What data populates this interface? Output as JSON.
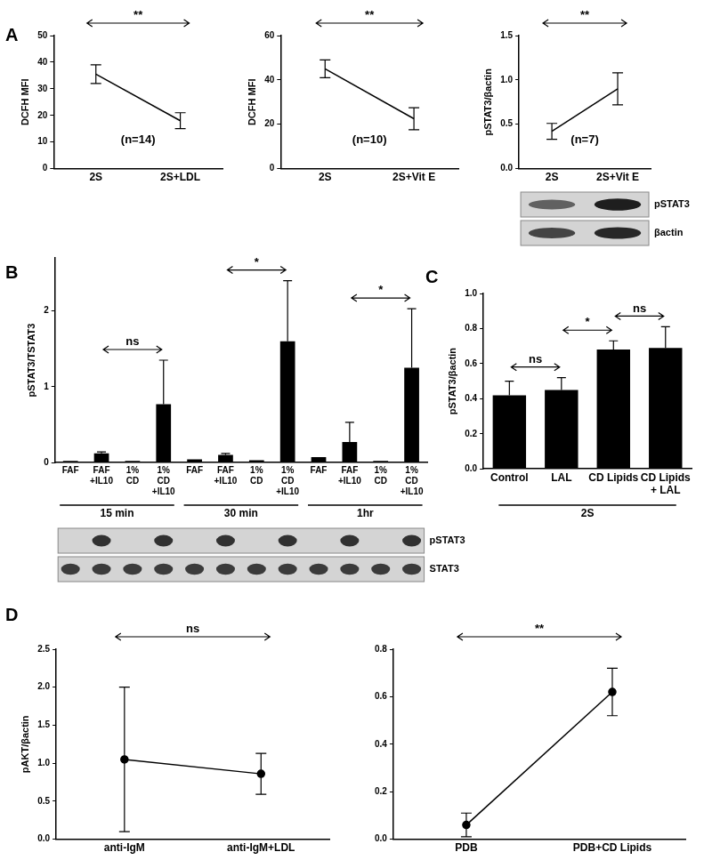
{
  "chart_data": [
    {
      "panel": "A",
      "type": "line",
      "categories": [
        "2S",
        "2S+LDL"
      ],
      "values": [
        35.5,
        18
      ],
      "errors": [
        3.5,
        3
      ],
      "color": "#000000",
      "marker": "none",
      "y_label": "DCFH MFI",
      "ylim": [
        0,
        50
      ],
      "yticks": [
        0,
        10,
        20,
        30,
        40,
        50
      ],
      "annotation": "(n=14)",
      "comparisons": [
        {
          "from": "2S",
          "to": "2S+LDL",
          "label": "**"
        }
      ]
    },
    {
      "type": "line",
      "categories": [
        "2S",
        "2S+Vit E"
      ],
      "values": [
        45,
        22.5
      ],
      "errors": [
        4,
        5
      ],
      "color": "#000000",
      "marker": "none",
      "y_label": "DCFH MFI",
      "ylim": [
        0,
        60
      ],
      "yticks": [
        0,
        20,
        40,
        60
      ],
      "annotation": "(n=10)",
      "comparisons": [
        {
          "from": "2S",
          "to": "2S+Vit E",
          "label": "**"
        }
      ]
    },
    {
      "type": "line",
      "categories": [
        "2S",
        "2S+Vit E"
      ],
      "values": [
        0.42,
        0.9
      ],
      "errors": [
        0.09,
        0.18
      ],
      "color": "#000000",
      "marker": "none",
      "y_label": "pSTAT3/βactin",
      "ylim": [
        0,
        1.5
      ],
      "yticks": [
        {
          "value": 0,
          "label": "0.0"
        },
        {
          "value": 0.5,
          "label": "0.5"
        },
        {
          "value": 1,
          "label": "1.0"
        },
        {
          "value": 1.5,
          "label": "1.5"
        }
      ],
      "annotation": "(n=7)",
      "comparisons": [
        {
          "from": "2S",
          "to": "2S+Vit E",
          "label": "**"
        }
      ],
      "blot": [
        "pSTAT3",
        "βactin"
      ]
    },
    {
      "panel": "B",
      "type": "bar",
      "color": "#000000",
      "y_label": "pSTAT3/TSTAT3",
      "ylim": [
        0,
        2.7
      ],
      "yticks": [
        0,
        1,
        2
      ],
      "groups": [
        {
          "label": "15 min",
          "categories": [
            "FAF",
            "FAF +IL10",
            "1% CD",
            "1% CD +IL10"
          ],
          "values": [
            0.02,
            0.12,
            0.02,
            0.77
          ],
          "errors": [
            0,
            0.02,
            0,
            0.58
          ],
          "comparison": {
            "from": "FAF +IL10",
            "to": "1% CD +IL10",
            "label": "ns"
          }
        },
        {
          "label": "30 min",
          "categories": [
            "FAF",
            "FAF +IL10",
            "1% CD",
            "1% CD +IL10"
          ],
          "values": [
            0.04,
            0.1,
            0.03,
            1.6
          ],
          "errors": [
            0,
            0.02,
            0,
            0.8
          ],
          "comparison": {
            "from": "FAF +IL10",
            "to": "1% CD +IL10",
            "label": "*"
          }
        },
        {
          "label": "1hr",
          "categories": [
            "FAF",
            "FAF +IL10",
            "1% CD",
            "1% CD +IL10"
          ],
          "values": [
            0.07,
            0.27,
            0.02,
            1.25
          ],
          "errors": [
            0,
            0.26,
            0,
            0.78
          ],
          "comparison": {
            "from": "FAF +IL10",
            "to": "1% CD +IL10",
            "label": "*"
          }
        }
      ],
      "blot": [
        "pSTAT3",
        "STAT3"
      ]
    },
    {
      "panel": "C",
      "type": "bar",
      "color": "#000000",
      "categories": [
        "Control",
        "LAL",
        "CD Lipids",
        "CD Lipids + LAL"
      ],
      "values": [
        0.42,
        0.45,
        0.68,
        0.69
      ],
      "errors": [
        0.08,
        0.07,
        0.05,
        0.12
      ],
      "group_label": "2S",
      "y_label": "pSTAT3/βactin",
      "ylim": [
        0,
        1
      ],
      "yticks": [
        {
          "value": 0,
          "label": "0.0"
        },
        {
          "value": 0.2,
          "label": "0.2"
        },
        {
          "value": 0.4,
          "label": "0.4"
        },
        {
          "value": 0.6,
          "label": "0.6"
        },
        {
          "value": 0.8,
          "label": "0.8"
        },
        {
          "value": 1,
          "label": "1.0"
        }
      ],
      "comparisons": [
        {
          "from": "Control",
          "to": "LAL",
          "label": "ns"
        },
        {
          "from": "LAL",
          "to": "CD Lipids",
          "label": "*"
        },
        {
          "from": "CD Lipids",
          "to": "CD Lipids + LAL",
          "label": "ns"
        }
      ]
    },
    {
      "panel": "D",
      "type": "line",
      "categories": [
        "anti-IgM",
        "anti-IgM+LDL"
      ],
      "values": [
        1.05,
        0.86
      ],
      "errors": [
        0.95,
        0.27
      ],
      "color": "#000000",
      "marker": "circle",
      "y_label": "pAKT/βactin",
      "ylim": [
        0,
        2.5
      ],
      "yticks": [
        {
          "value": 0,
          "label": "0.0"
        },
        {
          "value": 0.5,
          "label": "0.5"
        },
        {
          "value": 1,
          "label": "1.0"
        },
        {
          "value": 1.5,
          "label": "1.5"
        },
        {
          "value": 2,
          "label": "2.0"
        },
        {
          "value": 2.5,
          "label": "2.5"
        }
      ],
      "comparisons": [
        {
          "from": "anti-IgM",
          "to": "anti-IgM+LDL",
          "label": "ns"
        }
      ]
    },
    {
      "type": "line",
      "categories": [
        "PDB",
        "PDB+CD Lipids"
      ],
      "values": [
        0.06,
        0.62
      ],
      "errors": [
        0.05,
        0.1
      ],
      "color": "#000000",
      "marker": "circle",
      "ylim": [
        0,
        0.8
      ],
      "yticks": [
        {
          "value": 0,
          "label": "0.0"
        },
        {
          "value": 0.2,
          "label": "0.2"
        },
        {
          "value": 0.4,
          "label": "0.4"
        },
        {
          "value": 0.6,
          "label": "0.6"
        },
        {
          "value": 0.8,
          "label": "0.8"
        }
      ],
      "comparisons": [
        {
          "from": "PDB",
          "to": "PDB+CD Lipids",
          "label": "**"
        }
      ]
    }
  ]
}
